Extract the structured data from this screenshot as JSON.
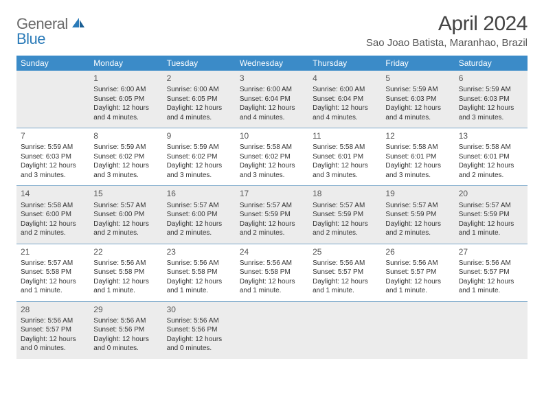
{
  "brand": {
    "part1": "General",
    "part2": "Blue"
  },
  "title": "April 2024",
  "location": "Sao Joao Batista, Maranhao, Brazil",
  "dow": [
    "Sunday",
    "Monday",
    "Tuesday",
    "Wednesday",
    "Thursday",
    "Friday",
    "Saturday"
  ],
  "colors": {
    "header_bg": "#3b8bc8",
    "header_fg": "#ffffff",
    "shade_bg": "#ececec",
    "rule": "#7aa7c9",
    "logo_gray": "#6b6b6b",
    "logo_blue": "#2a7ab8",
    "text": "#333333"
  },
  "rows": [
    {
      "shaded": true,
      "cells": [
        {
          "num": "",
          "lines": []
        },
        {
          "num": "1",
          "lines": [
            "Sunrise: 6:00 AM",
            "Sunset: 6:05 PM",
            "Daylight: 12 hours and 4 minutes."
          ]
        },
        {
          "num": "2",
          "lines": [
            "Sunrise: 6:00 AM",
            "Sunset: 6:05 PM",
            "Daylight: 12 hours and 4 minutes."
          ]
        },
        {
          "num": "3",
          "lines": [
            "Sunrise: 6:00 AM",
            "Sunset: 6:04 PM",
            "Daylight: 12 hours and 4 minutes."
          ]
        },
        {
          "num": "4",
          "lines": [
            "Sunrise: 6:00 AM",
            "Sunset: 6:04 PM",
            "Daylight: 12 hours and 4 minutes."
          ]
        },
        {
          "num": "5",
          "lines": [
            "Sunrise: 5:59 AM",
            "Sunset: 6:03 PM",
            "Daylight: 12 hours and 4 minutes."
          ]
        },
        {
          "num": "6",
          "lines": [
            "Sunrise: 5:59 AM",
            "Sunset: 6:03 PM",
            "Daylight: 12 hours and 3 minutes."
          ]
        }
      ]
    },
    {
      "shaded": false,
      "cells": [
        {
          "num": "7",
          "lines": [
            "Sunrise: 5:59 AM",
            "Sunset: 6:03 PM",
            "Daylight: 12 hours and 3 minutes."
          ]
        },
        {
          "num": "8",
          "lines": [
            "Sunrise: 5:59 AM",
            "Sunset: 6:02 PM",
            "Daylight: 12 hours and 3 minutes."
          ]
        },
        {
          "num": "9",
          "lines": [
            "Sunrise: 5:59 AM",
            "Sunset: 6:02 PM",
            "Daylight: 12 hours and 3 minutes."
          ]
        },
        {
          "num": "10",
          "lines": [
            "Sunrise: 5:58 AM",
            "Sunset: 6:02 PM",
            "Daylight: 12 hours and 3 minutes."
          ]
        },
        {
          "num": "11",
          "lines": [
            "Sunrise: 5:58 AM",
            "Sunset: 6:01 PM",
            "Daylight: 12 hours and 3 minutes."
          ]
        },
        {
          "num": "12",
          "lines": [
            "Sunrise: 5:58 AM",
            "Sunset: 6:01 PM",
            "Daylight: 12 hours and 3 minutes."
          ]
        },
        {
          "num": "13",
          "lines": [
            "Sunrise: 5:58 AM",
            "Sunset: 6:01 PM",
            "Daylight: 12 hours and 2 minutes."
          ]
        }
      ]
    },
    {
      "shaded": true,
      "cells": [
        {
          "num": "14",
          "lines": [
            "Sunrise: 5:58 AM",
            "Sunset: 6:00 PM",
            "Daylight: 12 hours and 2 minutes."
          ]
        },
        {
          "num": "15",
          "lines": [
            "Sunrise: 5:57 AM",
            "Sunset: 6:00 PM",
            "Daylight: 12 hours and 2 minutes."
          ]
        },
        {
          "num": "16",
          "lines": [
            "Sunrise: 5:57 AM",
            "Sunset: 6:00 PM",
            "Daylight: 12 hours and 2 minutes."
          ]
        },
        {
          "num": "17",
          "lines": [
            "Sunrise: 5:57 AM",
            "Sunset: 5:59 PM",
            "Daylight: 12 hours and 2 minutes."
          ]
        },
        {
          "num": "18",
          "lines": [
            "Sunrise: 5:57 AM",
            "Sunset: 5:59 PM",
            "Daylight: 12 hours and 2 minutes."
          ]
        },
        {
          "num": "19",
          "lines": [
            "Sunrise: 5:57 AM",
            "Sunset: 5:59 PM",
            "Daylight: 12 hours and 2 minutes."
          ]
        },
        {
          "num": "20",
          "lines": [
            "Sunrise: 5:57 AM",
            "Sunset: 5:59 PM",
            "Daylight: 12 hours and 1 minute."
          ]
        }
      ]
    },
    {
      "shaded": false,
      "cells": [
        {
          "num": "21",
          "lines": [
            "Sunrise: 5:57 AM",
            "Sunset: 5:58 PM",
            "Daylight: 12 hours and 1 minute."
          ]
        },
        {
          "num": "22",
          "lines": [
            "Sunrise: 5:56 AM",
            "Sunset: 5:58 PM",
            "Daylight: 12 hours and 1 minute."
          ]
        },
        {
          "num": "23",
          "lines": [
            "Sunrise: 5:56 AM",
            "Sunset: 5:58 PM",
            "Daylight: 12 hours and 1 minute."
          ]
        },
        {
          "num": "24",
          "lines": [
            "Sunrise: 5:56 AM",
            "Sunset: 5:58 PM",
            "Daylight: 12 hours and 1 minute."
          ]
        },
        {
          "num": "25",
          "lines": [
            "Sunrise: 5:56 AM",
            "Sunset: 5:57 PM",
            "Daylight: 12 hours and 1 minute."
          ]
        },
        {
          "num": "26",
          "lines": [
            "Sunrise: 5:56 AM",
            "Sunset: 5:57 PM",
            "Daylight: 12 hours and 1 minute."
          ]
        },
        {
          "num": "27",
          "lines": [
            "Sunrise: 5:56 AM",
            "Sunset: 5:57 PM",
            "Daylight: 12 hours and 1 minute."
          ]
        }
      ]
    },
    {
      "shaded": true,
      "cells": [
        {
          "num": "28",
          "lines": [
            "Sunrise: 5:56 AM",
            "Sunset: 5:57 PM",
            "Daylight: 12 hours and 0 minutes."
          ]
        },
        {
          "num": "29",
          "lines": [
            "Sunrise: 5:56 AM",
            "Sunset: 5:56 PM",
            "Daylight: 12 hours and 0 minutes."
          ]
        },
        {
          "num": "30",
          "lines": [
            "Sunrise: 5:56 AM",
            "Sunset: 5:56 PM",
            "Daylight: 12 hours and 0 minutes."
          ]
        },
        {
          "num": "",
          "lines": []
        },
        {
          "num": "",
          "lines": []
        },
        {
          "num": "",
          "lines": []
        },
        {
          "num": "",
          "lines": []
        }
      ]
    }
  ]
}
